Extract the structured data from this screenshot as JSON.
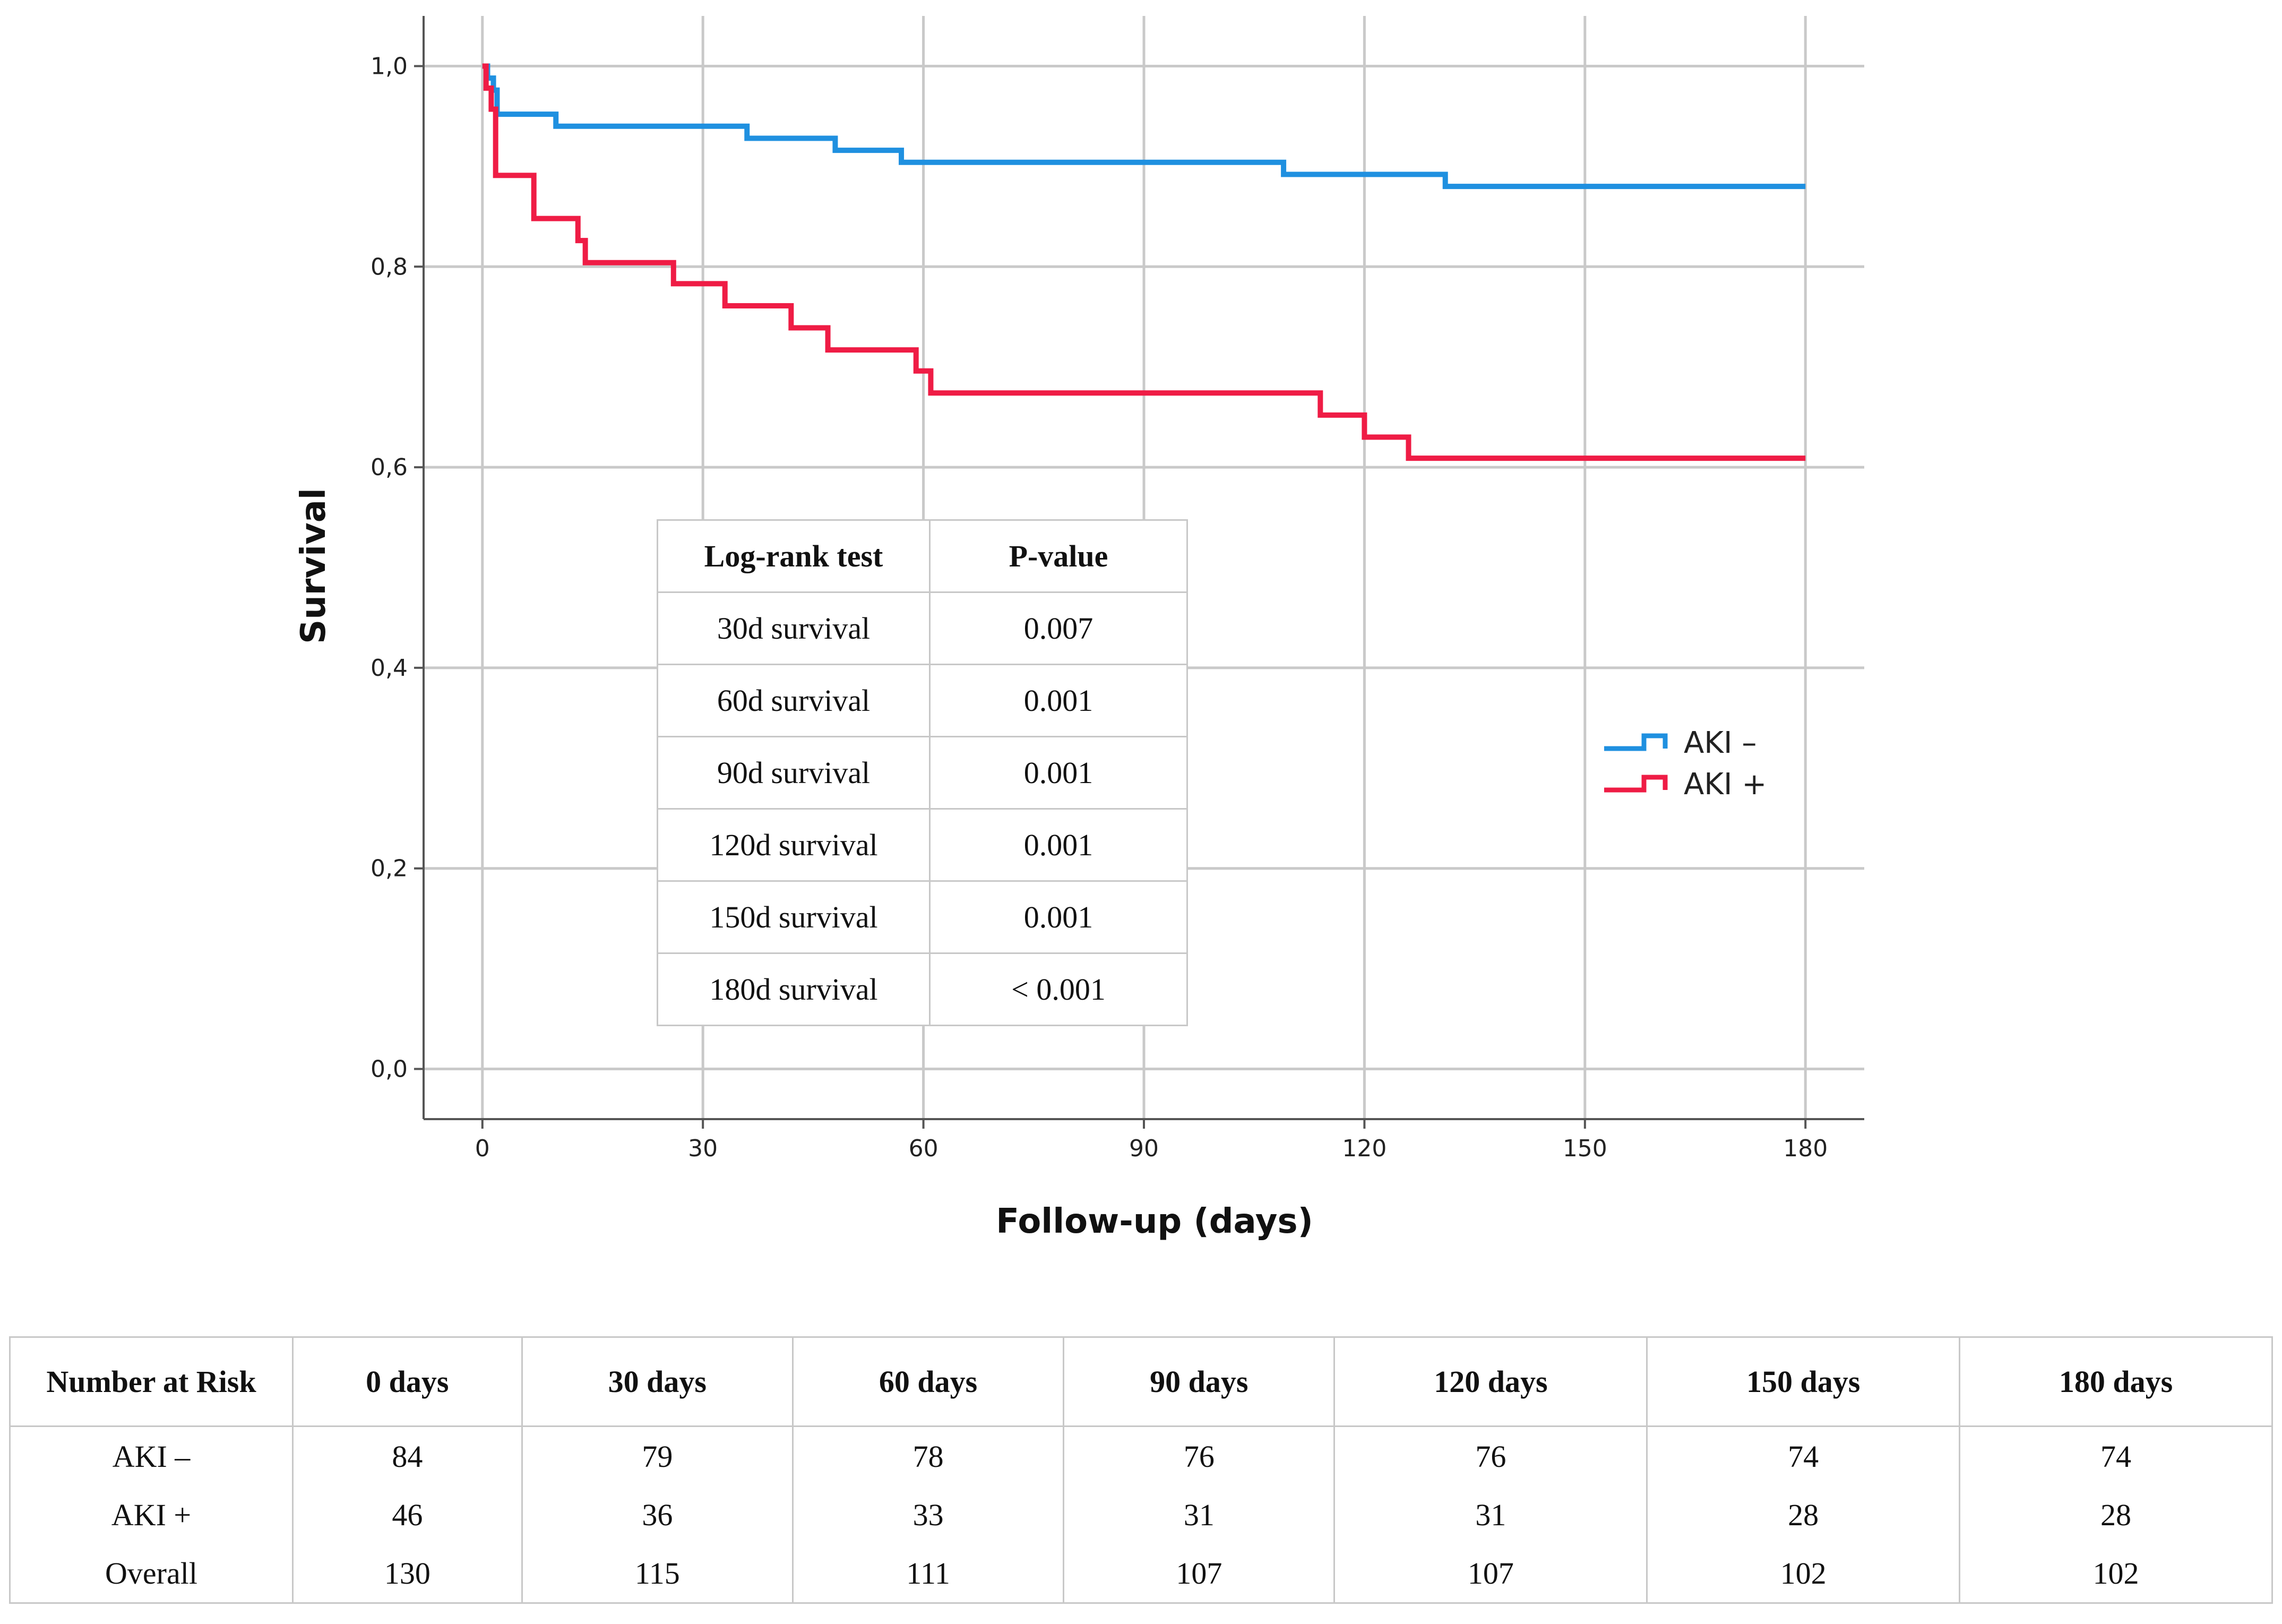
{
  "chart_data": {
    "type": "line",
    "subtype": "kaplan-meier step",
    "xlabel": "Follow-up (days)",
    "ylabel": "Survival",
    "xlim": [
      -8,
      188
    ],
    "ylim": [
      -0.05,
      1.05
    ],
    "x_ticks": [
      0,
      30,
      60,
      90,
      120,
      150,
      180
    ],
    "x_tick_labels": [
      "0",
      "30",
      "60",
      "90",
      "120",
      "150",
      "180"
    ],
    "y_ticks": [
      0.0,
      0.2,
      0.4,
      0.6,
      0.8,
      1.0
    ],
    "y_tick_labels": [
      "0,0",
      "0,2",
      "0,4",
      "0,6",
      "0,8",
      "1,0"
    ],
    "grid": true,
    "legend_position": "right",
    "series": [
      {
        "name": "AKI –",
        "color": "#1f90e0",
        "steps": [
          [
            0,
            1.0
          ],
          [
            0.7,
            0.988
          ],
          [
            1.5,
            0.976
          ],
          [
            2,
            0.952
          ],
          [
            10,
            0.94
          ],
          [
            36,
            0.928
          ],
          [
            48,
            0.916
          ],
          [
            57,
            0.904
          ],
          [
            109,
            0.892
          ],
          [
            131,
            0.88
          ],
          [
            180,
            0.88
          ]
        ]
      },
      {
        "name": "AKI +",
        "color": "#ef1c45",
        "steps": [
          [
            0,
            1.0
          ],
          [
            0.5,
            0.978
          ],
          [
            1.2,
            0.957
          ],
          [
            1.8,
            0.891
          ],
          [
            7,
            0.848
          ],
          [
            13,
            0.826
          ],
          [
            14,
            0.804
          ],
          [
            26,
            0.783
          ],
          [
            33,
            0.761
          ],
          [
            42,
            0.739
          ],
          [
            47,
            0.717
          ],
          [
            59,
            0.696
          ],
          [
            61,
            0.674
          ],
          [
            114,
            0.652
          ],
          [
            120,
            0.63
          ],
          [
            126,
            0.609
          ],
          [
            180,
            0.609
          ]
        ]
      }
    ]
  },
  "logrank_table": {
    "headers": [
      "Log-rank test",
      "P-value"
    ],
    "rows": [
      [
        "30d survival",
        "0.007"
      ],
      [
        "60d survival",
        "0.001"
      ],
      [
        "90d survival",
        "0.001"
      ],
      [
        "120d survival",
        "0.001"
      ],
      [
        "150d survival",
        "0.001"
      ],
      [
        "180d survival",
        "< 0.001"
      ]
    ]
  },
  "risk_table": {
    "headers": [
      "Number at Risk",
      "0 days",
      "30 days",
      "60 days",
      "90 days",
      "120 days",
      "150 days",
      "180 days"
    ],
    "rows": [
      [
        "AKI –",
        "84",
        "79",
        "78",
        "76",
        "76",
        "74",
        "74"
      ],
      [
        "AKI +",
        "46",
        "36",
        "33",
        "31",
        "31",
        "28",
        "28"
      ],
      [
        "Overall",
        "130",
        "115",
        "111",
        "107",
        "107",
        "102",
        "102"
      ]
    ]
  }
}
